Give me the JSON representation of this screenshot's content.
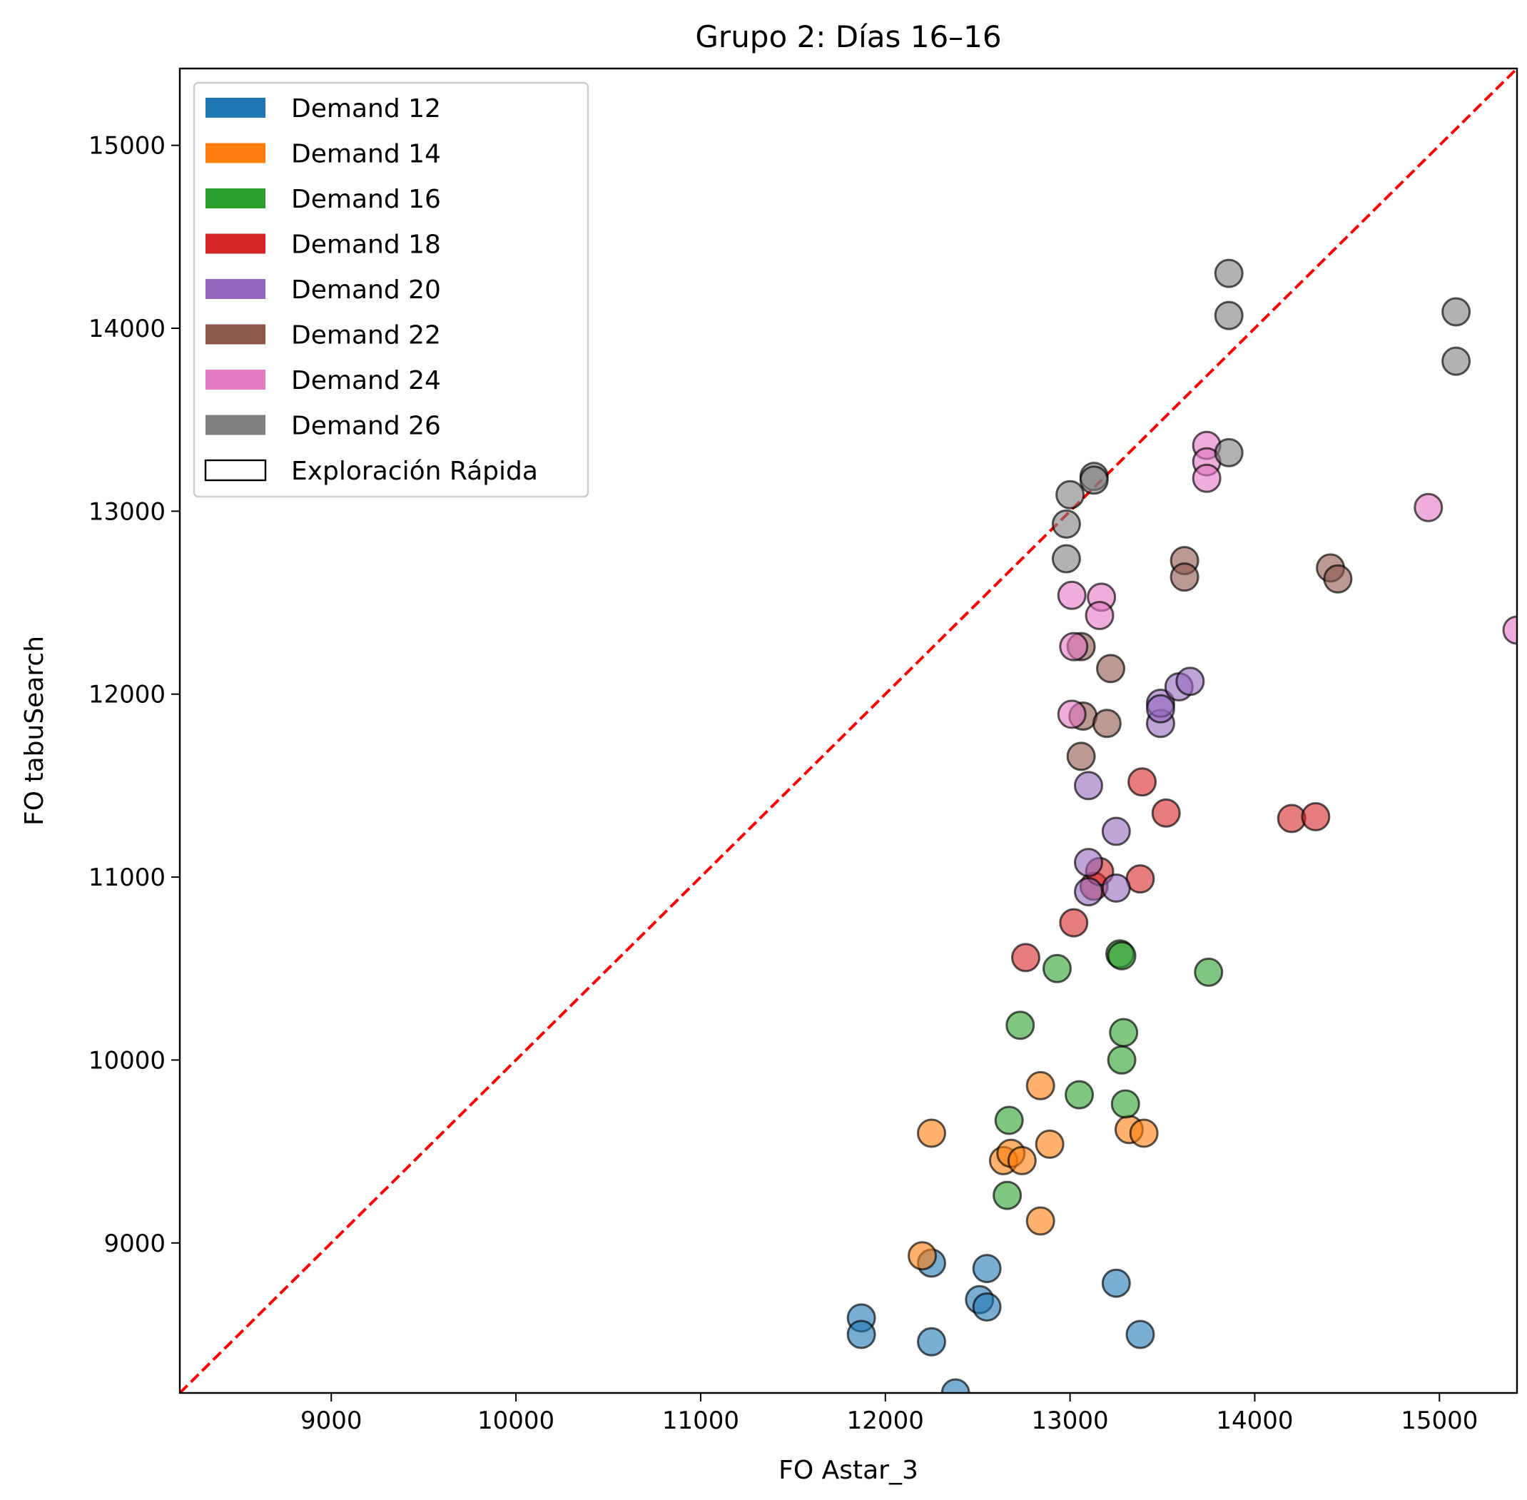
{
  "chart_data": {
    "type": "scatter",
    "title": "Grupo 2: Días 16–16",
    "xlabel": "FO Astar_3",
    "ylabel": "FO tabuSearch",
    "xlim": [
      8180,
      15420
    ],
    "ylim": [
      8180,
      15420
    ],
    "xticks": [
      9000,
      10000,
      11000,
      12000,
      13000,
      14000,
      15000
    ],
    "yticks": [
      9000,
      10000,
      11000,
      12000,
      13000,
      14000,
      15000
    ],
    "grid": false,
    "legend_position": "top-left",
    "reference_line": {
      "type": "diagonal",
      "style": "dashed",
      "color": "#ff0000"
    },
    "legend_extra": "Exploración Rápida",
    "series": [
      {
        "name": "Demand 12",
        "color": "#1f77b4",
        "points": [
          [
            11870,
            8590
          ],
          [
            11870,
            8500
          ],
          [
            12250,
            8890
          ],
          [
            12250,
            8460
          ],
          [
            12550,
            8860
          ],
          [
            12510,
            8690
          ],
          [
            12550,
            8650
          ],
          [
            13250,
            8780
          ],
          [
            13380,
            8500
          ],
          [
            12380,
            8180
          ]
        ]
      },
      {
        "name": "Demand 14",
        "color": "#ff7f0e",
        "points": [
          [
            12200,
            8930
          ],
          [
            12250,
            9600
          ],
          [
            12640,
            9450
          ],
          [
            12680,
            9490
          ],
          [
            12740,
            9450
          ],
          [
            12840,
            9860
          ],
          [
            12890,
            9540
          ],
          [
            12840,
            9120
          ],
          [
            13320,
            9620
          ],
          [
            13400,
            9600
          ]
        ]
      },
      {
        "name": "Demand 16",
        "color": "#2ca02c",
        "points": [
          [
            12930,
            10500
          ],
          [
            12730,
            10190
          ],
          [
            13270,
            10580
          ],
          [
            13280,
            10570
          ],
          [
            13290,
            10150
          ],
          [
            13280,
            10000
          ],
          [
            13050,
            9810
          ],
          [
            13300,
            9760
          ],
          [
            12670,
            9670
          ],
          [
            12660,
            9260
          ],
          [
            13750,
            10480
          ]
        ]
      },
      {
        "name": "Demand 18",
        "color": "#d62728",
        "points": [
          [
            12760,
            10560
          ],
          [
            13020,
            10750
          ],
          [
            13130,
            10950
          ],
          [
            13160,
            11030
          ],
          [
            13380,
            10990
          ],
          [
            13390,
            11520
          ],
          [
            13520,
            11350
          ],
          [
            14200,
            11320
          ],
          [
            14330,
            11330
          ]
        ]
      },
      {
        "name": "Demand 20",
        "color": "#9467bd",
        "points": [
          [
            13100,
            11500
          ],
          [
            13100,
            11080
          ],
          [
            13100,
            10920
          ],
          [
            13250,
            11250
          ],
          [
            13250,
            10940
          ],
          [
            13490,
            11840
          ],
          [
            13490,
            11950
          ],
          [
            13490,
            11920
          ],
          [
            13590,
            12040
          ],
          [
            13650,
            12070
          ]
        ]
      },
      {
        "name": "Demand 22",
        "color": "#8c564b",
        "points": [
          [
            13060,
            12260
          ],
          [
            13070,
            11880
          ],
          [
            13060,
            11660
          ],
          [
            13200,
            11840
          ],
          [
            13220,
            12140
          ],
          [
            13620,
            12730
          ],
          [
            13620,
            12640
          ],
          [
            14410,
            12690
          ],
          [
            14450,
            12630
          ]
        ]
      },
      {
        "name": "Demand 24",
        "color": "#e377c2",
        "points": [
          [
            13010,
            12540
          ],
          [
            13020,
            12260
          ],
          [
            13010,
            11890
          ],
          [
            13170,
            12530
          ],
          [
            13160,
            12430
          ],
          [
            13740,
            13360
          ],
          [
            13740,
            13270
          ],
          [
            13740,
            13180
          ],
          [
            14940,
            13020
          ],
          [
            15420,
            12350
          ]
        ]
      },
      {
        "name": "Demand 26",
        "color": "#7f7f7f",
        "points": [
          [
            12980,
            12930
          ],
          [
            12980,
            12740
          ],
          [
            13000,
            13090
          ],
          [
            13130,
            13190
          ],
          [
            13130,
            13170
          ],
          [
            13860,
            14300
          ],
          [
            13860,
            14070
          ],
          [
            13860,
            13320
          ],
          [
            15090,
            14090
          ],
          [
            15090,
            13820
          ]
        ]
      }
    ]
  }
}
